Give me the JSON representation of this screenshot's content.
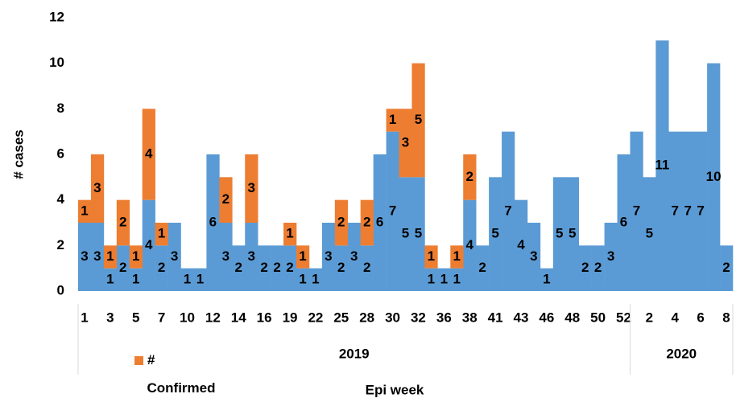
{
  "chart_data": {
    "type": "stacked_bar",
    "y_label": "# cases",
    "x_label": "Epi week",
    "categories": [
      "1",
      null,
      "3",
      null,
      "5",
      null,
      "7",
      null,
      "10",
      null,
      "12",
      null,
      "14",
      null,
      "16",
      null,
      "19",
      null,
      "22",
      null,
      "25",
      null,
      "28",
      null,
      "30",
      null,
      "32",
      null,
      "36",
      null,
      "38",
      null,
      "41",
      null,
      "43",
      null,
      "46",
      null,
      "48",
      null,
      "50",
      null,
      "52",
      null,
      "2",
      null,
      "4",
      null,
      "6",
      null,
      "8"
    ],
    "groups": [
      {
        "name": "2019",
        "count": 43
      },
      {
        "name": "2020",
        "count": 8
      }
    ],
    "series": [
      {
        "color": "#5b9bd5",
        "values": [
          3,
          3,
          1,
          2,
          1,
          4,
          2,
          3,
          1,
          1,
          6,
          3,
          2,
          3,
          2,
          2,
          2,
          1,
          1,
          3,
          2,
          3,
          2,
          6,
          7,
          5,
          5,
          1,
          1,
          1,
          4,
          2,
          5,
          7,
          4,
          3,
          1,
          5,
          5,
          2,
          2,
          3,
          6,
          7,
          5,
          11,
          7,
          7,
          7,
          10,
          2
        ]
      },
      {
        "name": "# Confirmed",
        "color": "#ed7d31",
        "values": [
          1,
          3,
          1,
          2,
          1,
          4,
          1,
          null,
          null,
          null,
          null,
          2,
          null,
          3,
          null,
          null,
          1,
          1,
          null,
          null,
          2,
          null,
          2,
          null,
          1,
          3,
          5,
          1,
          null,
          1,
          2,
          null,
          null,
          null,
          null,
          null,
          null,
          null,
          null,
          null,
          null,
          null,
          null,
          null,
          null,
          null,
          null,
          null,
          null,
          null,
          null
        ]
      }
    ],
    "ylim": [
      0,
      12
    ],
    "yticks": [
      0,
      2,
      4,
      6,
      8,
      10,
      12
    ],
    "grid": false,
    "legend": "bottom-left"
  }
}
